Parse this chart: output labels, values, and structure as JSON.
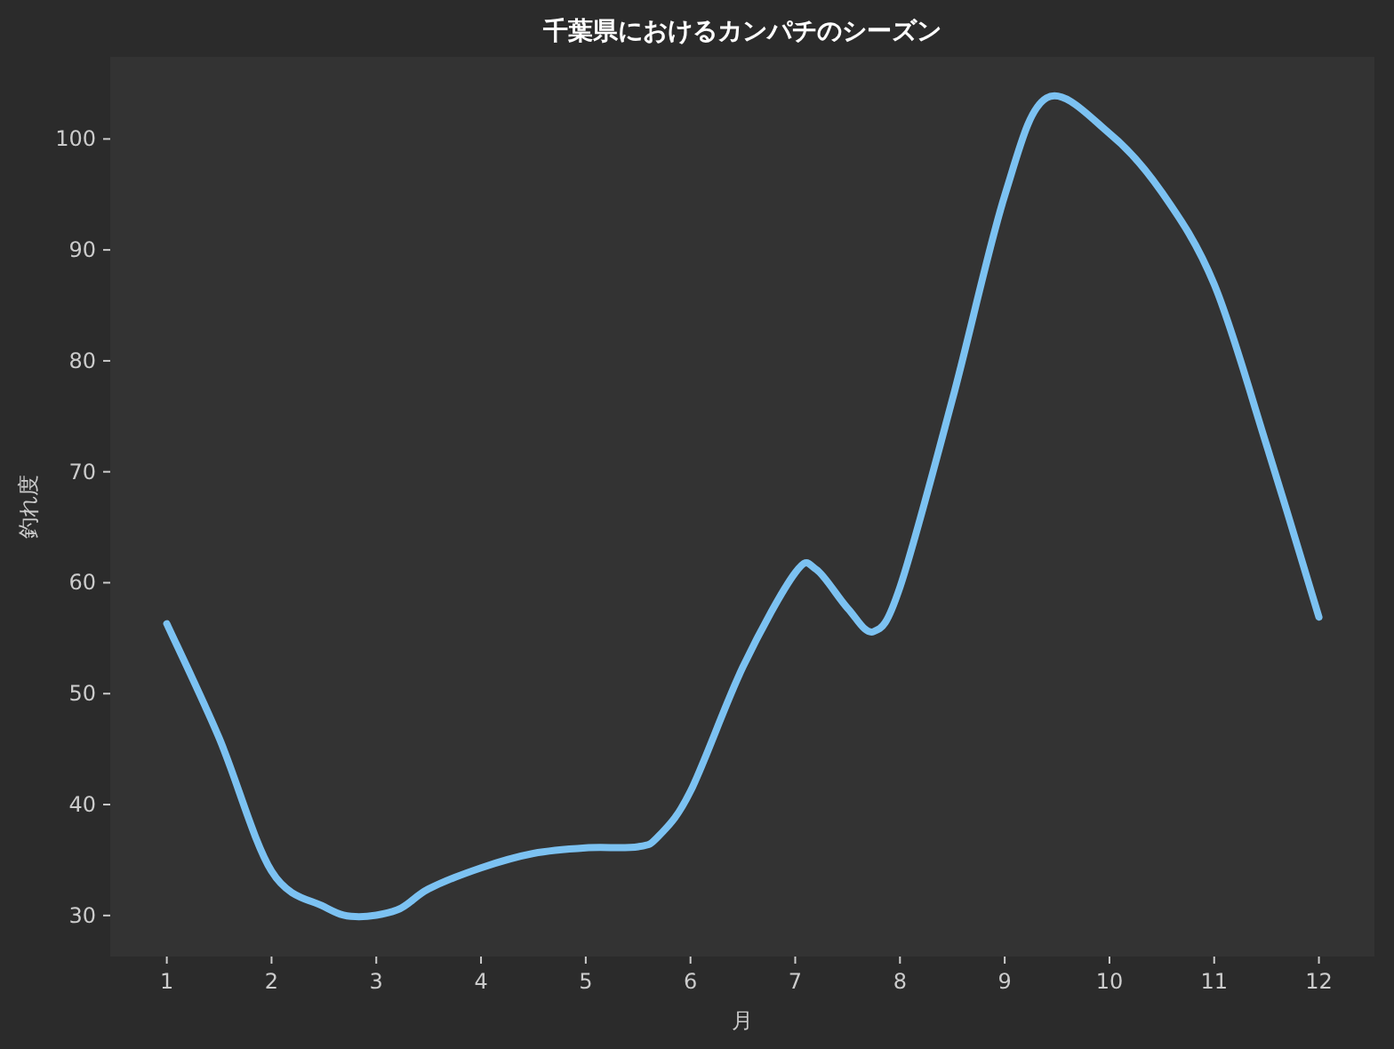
{
  "chart_data": {
    "type": "line",
    "title": "千葉県におけるカンパチのシーズン",
    "xlabel": "月",
    "ylabel": "釣れ度",
    "x": [
      1,
      1.5,
      2,
      2.5,
      2.8,
      3.2,
      3.5,
      4,
      4.5,
      5,
      5.5,
      5.7,
      6,
      6.5,
      7,
      7.2,
      7.5,
      7.75,
      8,
      8.5,
      9,
      9.4,
      10,
      10.5,
      11,
      11.5,
      12
    ],
    "values": [
      56.3,
      46,
      34,
      30.8,
      29.9,
      30.5,
      32.4,
      34.3,
      35.6,
      36.1,
      36.2,
      37.2,
      41.2,
      52.4,
      60.9,
      61.2,
      57.7,
      55.6,
      59.6,
      76.5,
      94.9,
      103.7,
      100.5,
      95.2,
      86.9,
      72.4,
      56.9
    ],
    "color": "#7cc2f2",
    "xlim": [
      0.46,
      12.53
    ],
    "ylim": [
      26.3,
      107.4
    ],
    "xticks": [
      1,
      2,
      3,
      4,
      5,
      6,
      7,
      8,
      9,
      10,
      11,
      12
    ],
    "yticks": [
      30,
      40,
      50,
      60,
      70,
      80,
      90,
      100
    ],
    "grid": false,
    "marker": "none",
    "line_style": "solid"
  }
}
